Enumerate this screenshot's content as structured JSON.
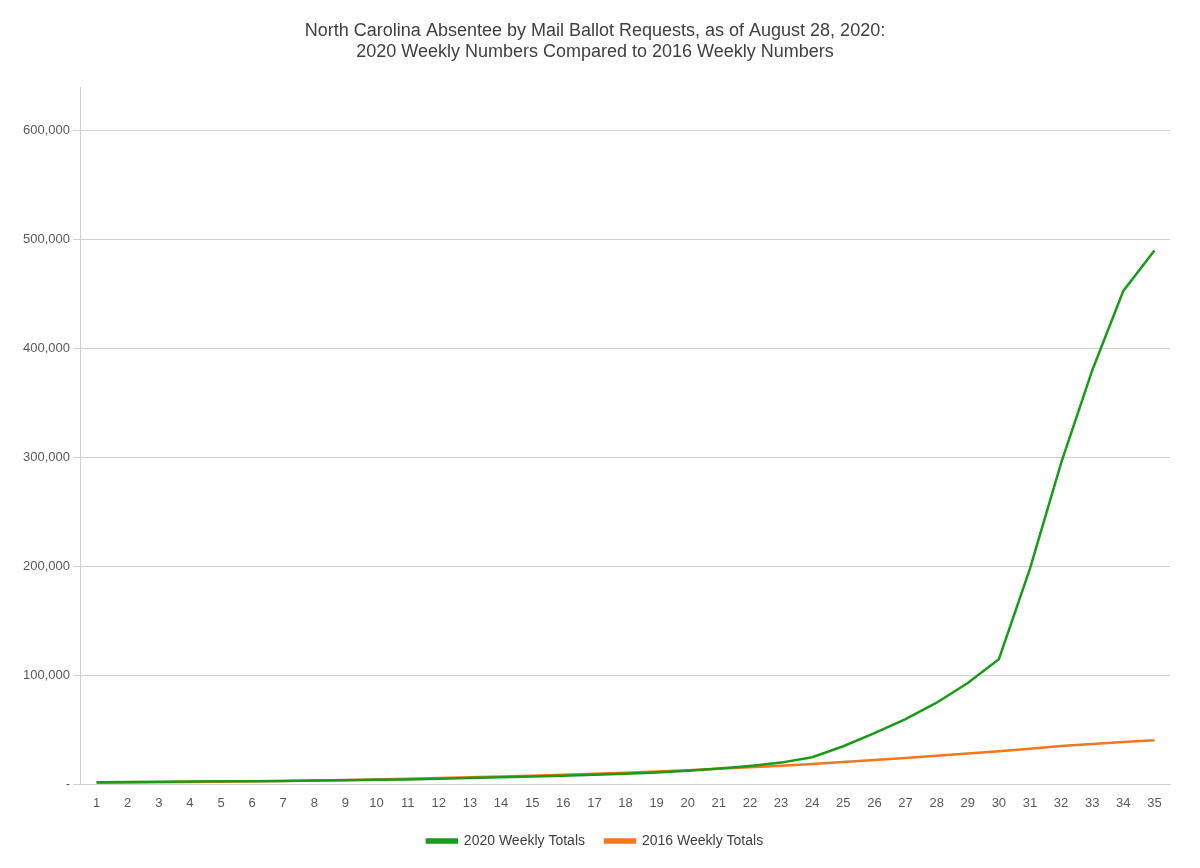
{
  "chart_data": {
    "type": "line",
    "title": "North Carolina Absentee by Mail Ballot Requests, as of August 28, 2020:\n2020 Weekly Numbers Compared to 2016 Weekly Numbers",
    "x": [
      1,
      2,
      3,
      4,
      5,
      6,
      7,
      8,
      9,
      10,
      11,
      12,
      13,
      14,
      15,
      16,
      17,
      18,
      19,
      20,
      21,
      22,
      23,
      24,
      25,
      26,
      27,
      28,
      29,
      30,
      31,
      32,
      33,
      34,
      35
    ],
    "series": [
      {
        "name": "2020 Weekly Totals",
        "color": "#1a9a1a",
        "values": [
          2000,
          2200,
          2400,
          2600,
          2800,
          3000,
          3200,
          3500,
          3800,
          4200,
          4600,
          5200,
          5800,
          6500,
          7200,
          8000,
          8800,
          9800,
          11000,
          12500,
          14500,
          17000,
          20000,
          25000,
          35000,
          47000,
          60000,
          75000,
          93000,
          115000,
          198000,
          295000,
          380000,
          453000,
          490000
        ]
      },
      {
        "name": "2016 Weekly Totals",
        "color": "#f07820",
        "values": [
          1500,
          1700,
          1900,
          2200,
          2500,
          2800,
          3200,
          3600,
          4100,
          4600,
          5200,
          5800,
          6500,
          7200,
          8000,
          8800,
          9700,
          10700,
          11800,
          13000,
          14300,
          15700,
          17200,
          18800,
          20500,
          22300,
          24200,
          26200,
          28300,
          30500,
          32800,
          35200,
          37000,
          39000,
          40500
        ]
      }
    ],
    "xlim": [
      0.5,
      35.5
    ],
    "xticks": [
      1,
      2,
      3,
      4,
      5,
      6,
      7,
      8,
      9,
      10,
      11,
      12,
      13,
      14,
      15,
      16,
      17,
      18,
      19,
      20,
      21,
      22,
      23,
      24,
      25,
      26,
      27,
      28,
      29,
      30,
      31,
      32,
      33,
      34,
      35
    ],
    "ylim": [
      0,
      640000
    ],
    "yticks": [
      {
        "value": 0,
        "label": "-"
      },
      {
        "value": 100000,
        "label": "100,000"
      },
      {
        "value": 200000,
        "label": "200,000"
      },
      {
        "value": 300000,
        "label": "300,000"
      },
      {
        "value": 400000,
        "label": "400,000"
      },
      {
        "value": 500000,
        "label": "500,000"
      },
      {
        "value": 600000,
        "label": "600,000"
      }
    ],
    "grid": true,
    "legend": "bottom"
  }
}
